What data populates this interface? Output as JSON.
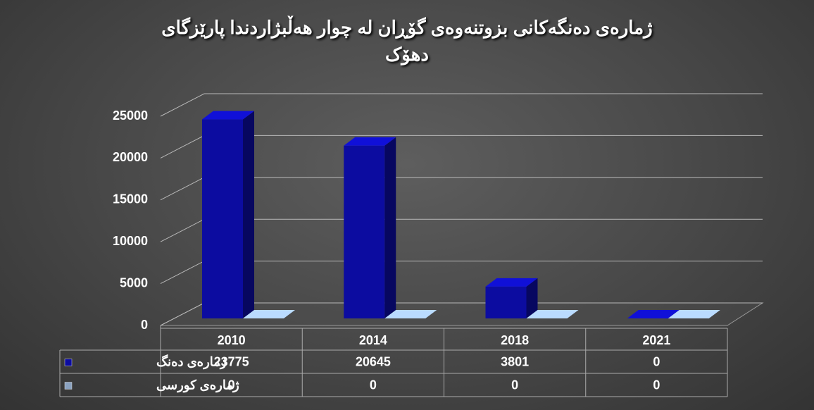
{
  "chart_data": {
    "type": "bar3d",
    "title": "ژمارەی دەنگەکانی بزوتنەوەی گۆڕان لە چوار هەڵبژاردندا پارێزگای دهۆک",
    "categories": [
      "2010",
      "2014",
      "2018",
      "2021"
    ],
    "series": [
      {
        "name": "ژمارەی دەنگ",
        "color": "#0c0ca0",
        "values": [
          23775,
          20645,
          3801,
          0
        ]
      },
      {
        "name": "ژمارەی کورسی",
        "color": "#8aa2c0",
        "values": [
          0,
          0,
          0,
          0
        ]
      }
    ],
    "ylim": [
      0,
      25000
    ],
    "yticks": [
      0,
      5000,
      10000,
      15000,
      20000,
      25000
    ],
    "grid": true
  }
}
